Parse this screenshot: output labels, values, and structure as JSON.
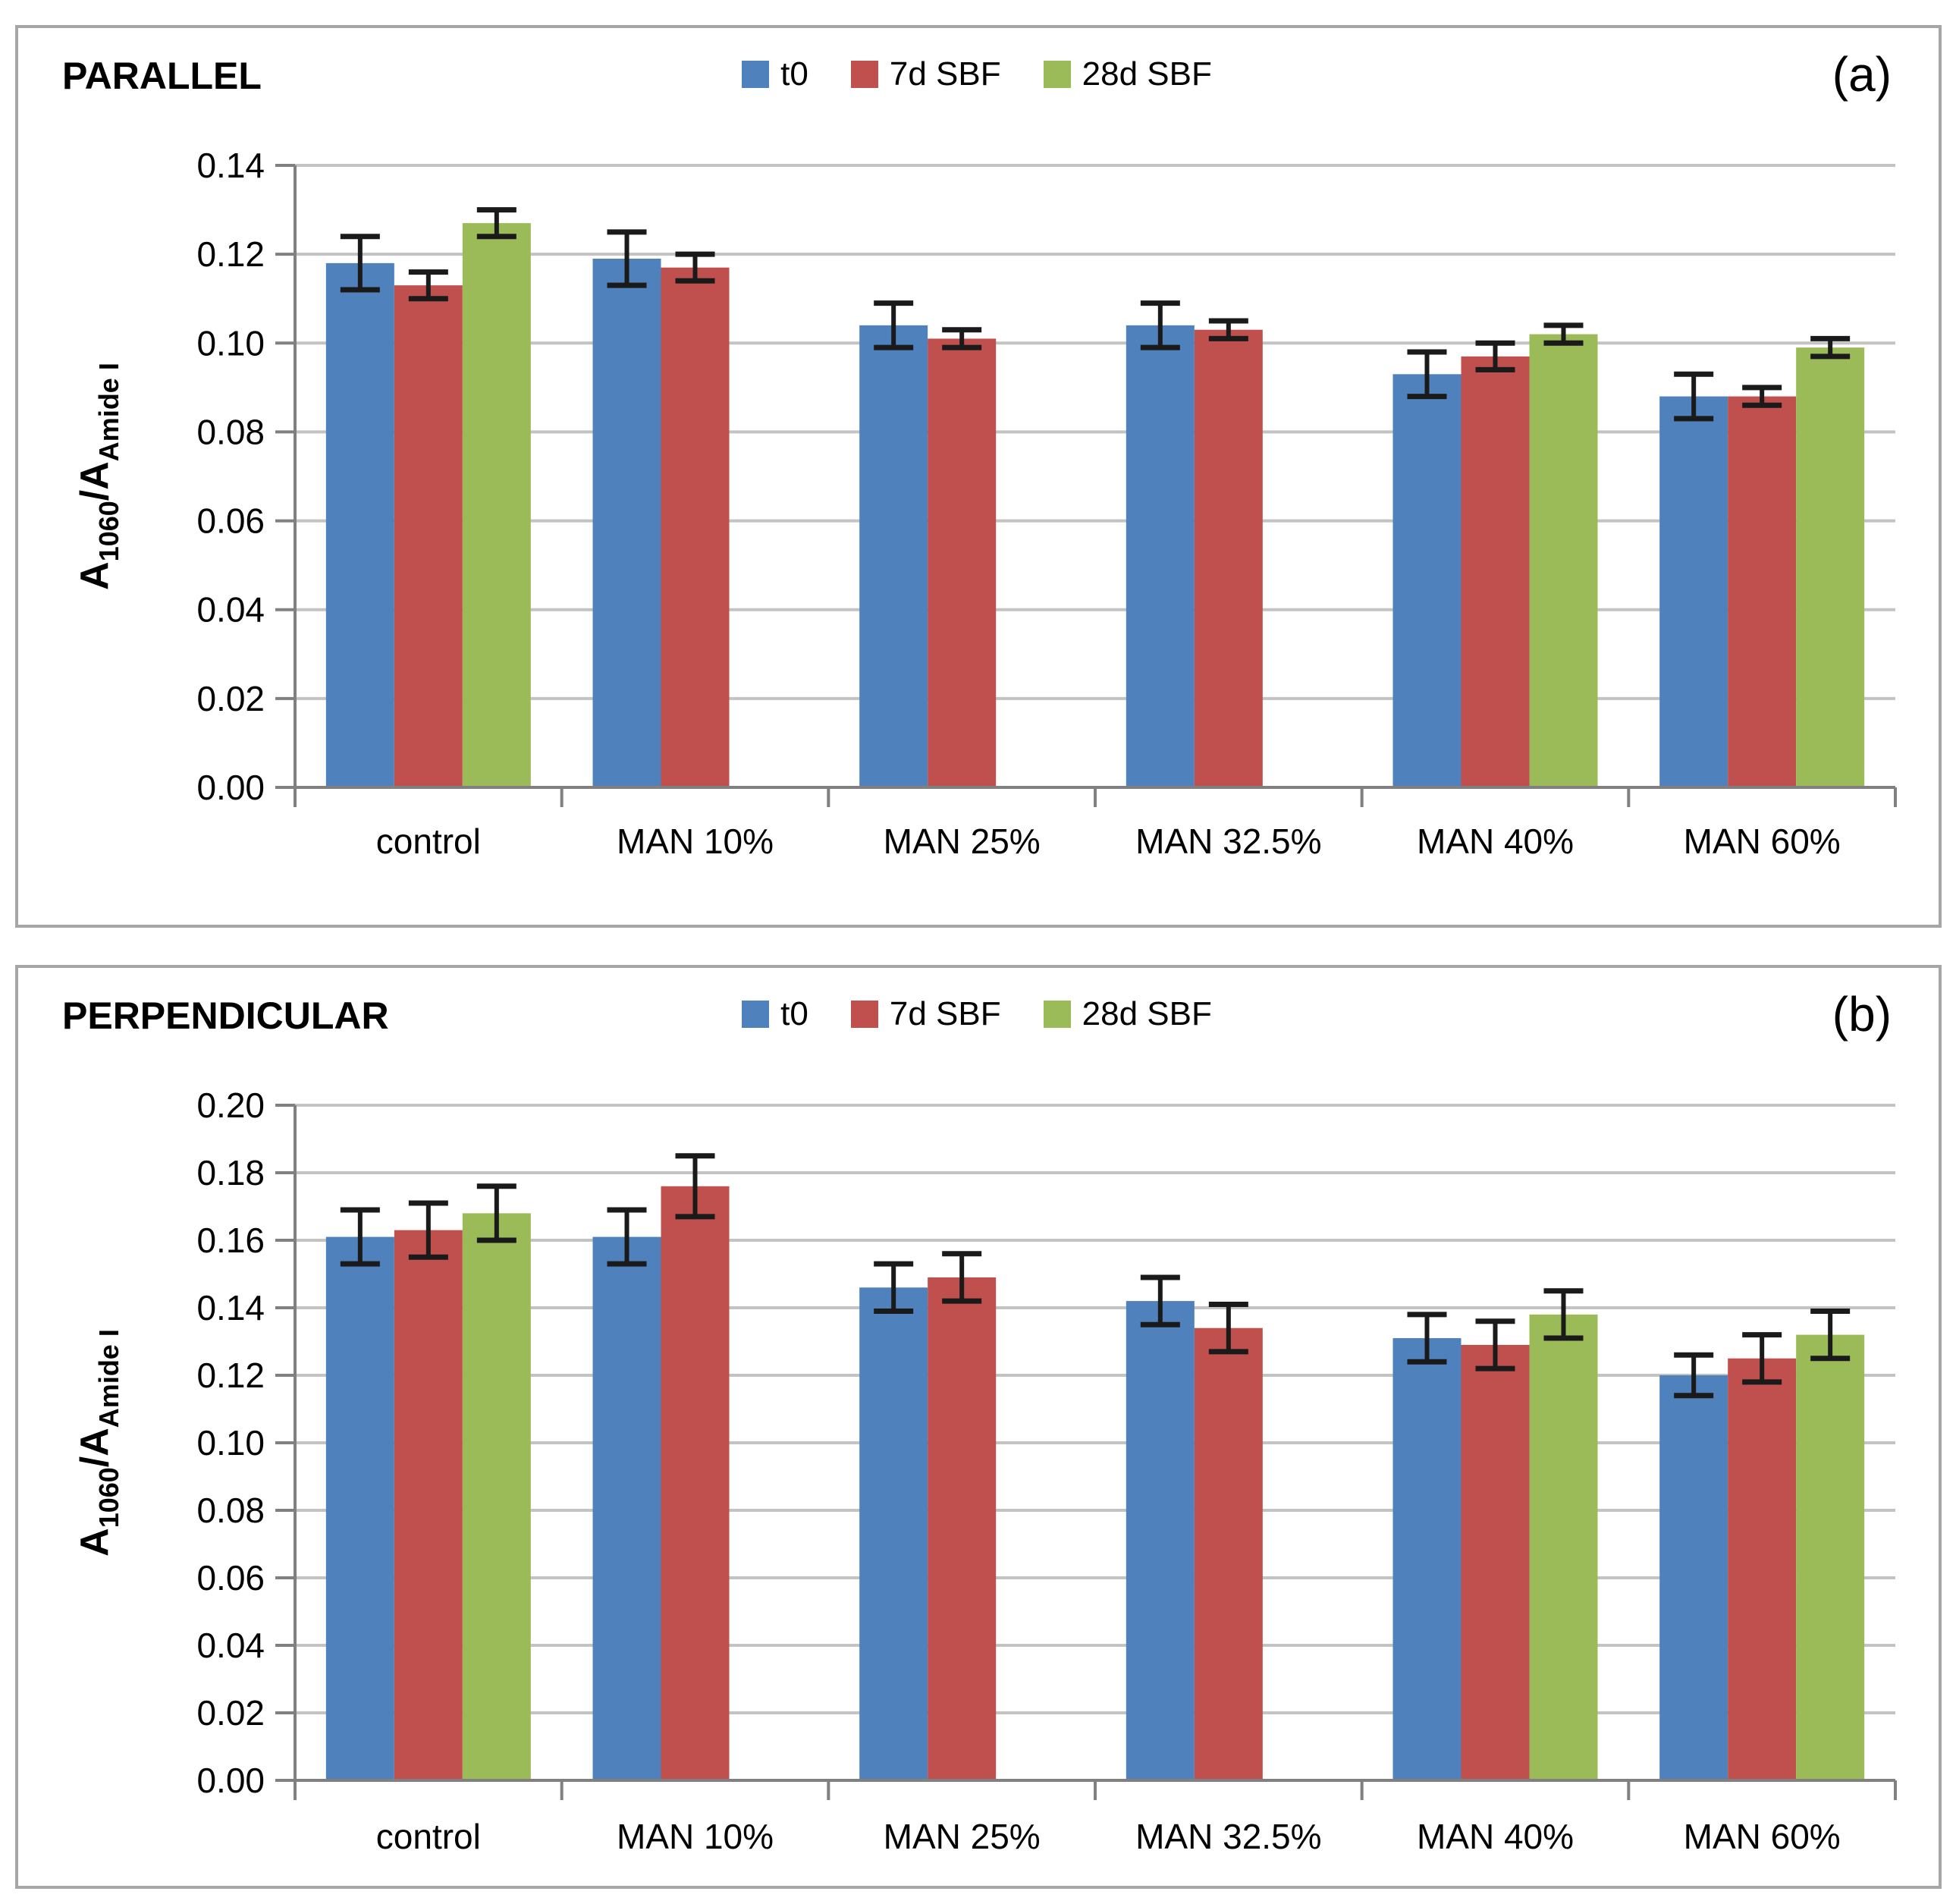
{
  "styles": {
    "background": "#FFFFFF",
    "panel_border_color": "#A6A6A6",
    "grid_color": "#C3C3C3",
    "axis_color": "#808080",
    "error_bar_color": "#1A1A1A",
    "text_color": "#000000"
  },
  "chart_data": [
    {
      "type": "bar",
      "panel": "a",
      "title": "PARALLEL",
      "letter": "(a)",
      "ylabel_rich": [
        {
          "t": "A"
        },
        {
          "t": "1060",
          "sub": true
        },
        {
          "t": "/A"
        },
        {
          "t": "Amide I",
          "sub": true
        }
      ],
      "categories": [
        "control",
        "MAN 10%",
        "MAN 25%",
        "MAN 32.5%",
        "MAN 40%",
        "MAN 60%"
      ],
      "series": [
        {
          "name": "t0",
          "color": "#4F81BD",
          "values": [
            0.118,
            0.119,
            0.104,
            0.104,
            0.093,
            0.088
          ],
          "errors": [
            0.006,
            0.006,
            0.005,
            0.005,
            0.005,
            0.005
          ]
        },
        {
          "name": "7d SBF",
          "color": "#C0504D",
          "values": [
            0.113,
            0.117,
            0.101,
            0.103,
            0.097,
            0.088
          ],
          "errors": [
            0.003,
            0.003,
            0.002,
            0.002,
            0.003,
            0.002
          ]
        },
        {
          "name": "28d SBF",
          "color": "#9BBB59",
          "values": [
            0.127,
            null,
            null,
            null,
            0.102,
            0.099
          ],
          "errors": [
            0.003,
            null,
            null,
            null,
            0.002,
            0.002
          ]
        }
      ],
      "ylim": [
        0,
        0.14
      ],
      "ytick_step": 0.02,
      "y_tick_labels": [
        "0.00",
        "0.02",
        "0.04",
        "0.06",
        "0.08",
        "0.10",
        "0.12",
        "0.14"
      ],
      "grid": true,
      "legend_position": "top-center"
    },
    {
      "type": "bar",
      "panel": "b",
      "title": "PERPENDICULAR",
      "letter": "(b)",
      "ylabel_rich": [
        {
          "t": "A"
        },
        {
          "t": "1060",
          "sub": true
        },
        {
          "t": "/A"
        },
        {
          "t": "Amide I",
          "sub": true
        }
      ],
      "categories": [
        "control",
        "MAN 10%",
        "MAN 25%",
        "MAN 32.5%",
        "MAN 40%",
        "MAN 60%"
      ],
      "series": [
        {
          "name": "t0",
          "color": "#4F81BD",
          "values": [
            0.161,
            0.161,
            0.146,
            0.142,
            0.131,
            0.12
          ],
          "errors": [
            0.008,
            0.008,
            0.007,
            0.007,
            0.007,
            0.006
          ]
        },
        {
          "name": "7d SBF",
          "color": "#C0504D",
          "values": [
            0.163,
            0.176,
            0.149,
            0.134,
            0.129,
            0.125
          ],
          "errors": [
            0.008,
            0.009,
            0.007,
            0.007,
            0.007,
            0.007
          ]
        },
        {
          "name": "28d SBF",
          "color": "#9BBB59",
          "values": [
            0.168,
            null,
            null,
            null,
            0.138,
            0.132
          ],
          "errors": [
            0.008,
            null,
            null,
            null,
            0.007,
            0.007
          ]
        }
      ],
      "ylim": [
        0,
        0.2
      ],
      "ytick_step": 0.02,
      "y_tick_labels": [
        "0.00",
        "0.02",
        "0.04",
        "0.06",
        "0.08",
        "0.10",
        "0.12",
        "0.14",
        "0.16",
        "0.18",
        "0.20"
      ],
      "grid": true,
      "legend_position": "top-center"
    }
  ]
}
